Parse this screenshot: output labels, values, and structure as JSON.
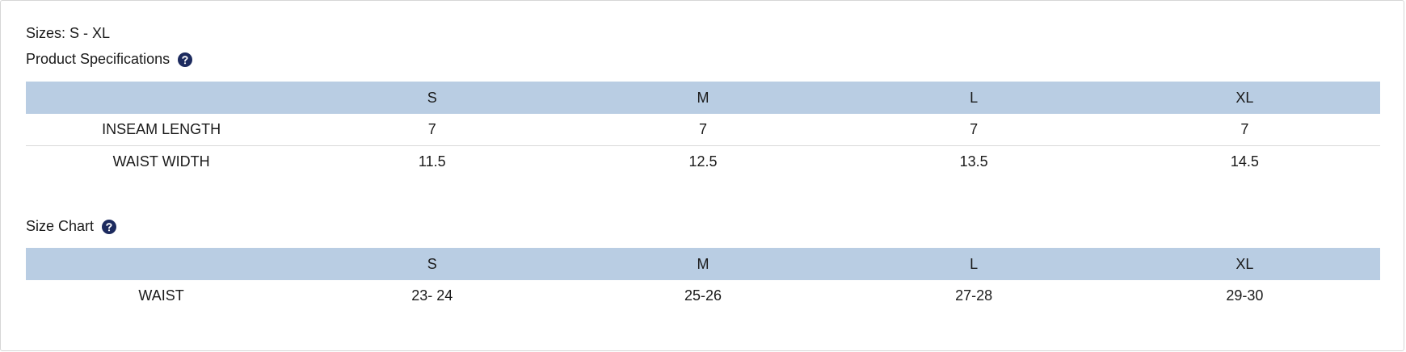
{
  "sizes": "Sizes: S - XL",
  "specifications": {
    "title": "Product Specifications",
    "header": [
      "S",
      "M",
      "L",
      "XL"
    ],
    "rows": [
      [
        "INSEAM LENGTH",
        "7",
        "7",
        "7",
        "7"
      ],
      [
        "WAIST WIDTH",
        "11.5",
        "12.5",
        "13.5",
        "14.5"
      ]
    ]
  },
  "size_chart": {
    "title": "Size Chart",
    "header": [
      "S",
      "M",
      "L",
      "XL"
    ],
    "rows": [
      [
        "WAIST",
        "23- 24",
        "25-26",
        "27-28",
        "29-30"
      ]
    ]
  }
}
